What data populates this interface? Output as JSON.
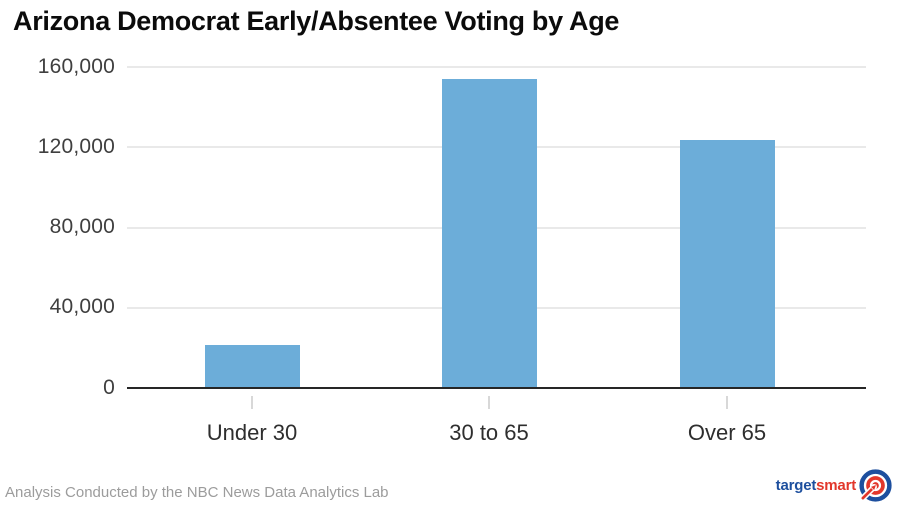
{
  "title": "Arizona Democrat Early/Absentee Voting by Age",
  "footer": {
    "credit": "Analysis Conducted by the NBC News Data Analytics Lab"
  },
  "logo": {
    "part1": "target",
    "part2": "smart",
    "icon": "bullseye-arrow-icon",
    "blue": "#1d4f9e",
    "red": "#e2372b"
  },
  "chart_data": {
    "type": "bar",
    "title": "Arizona Democrat Early/Absentee Voting by Age",
    "categories": [
      "Under 30",
      "30 to 65",
      "Over 65"
    ],
    "values": [
      21500,
      154000,
      123500
    ],
    "xlabel": "",
    "ylabel": "",
    "ylim": [
      0,
      160000
    ],
    "yticks": [
      0,
      40000,
      80000,
      120000,
      160000
    ],
    "ytick_labels": [
      "0",
      "40,000",
      "80,000",
      "120,000",
      "160,000"
    ],
    "grid": true,
    "legend": false,
    "bar_color": "#6cadd9"
  }
}
